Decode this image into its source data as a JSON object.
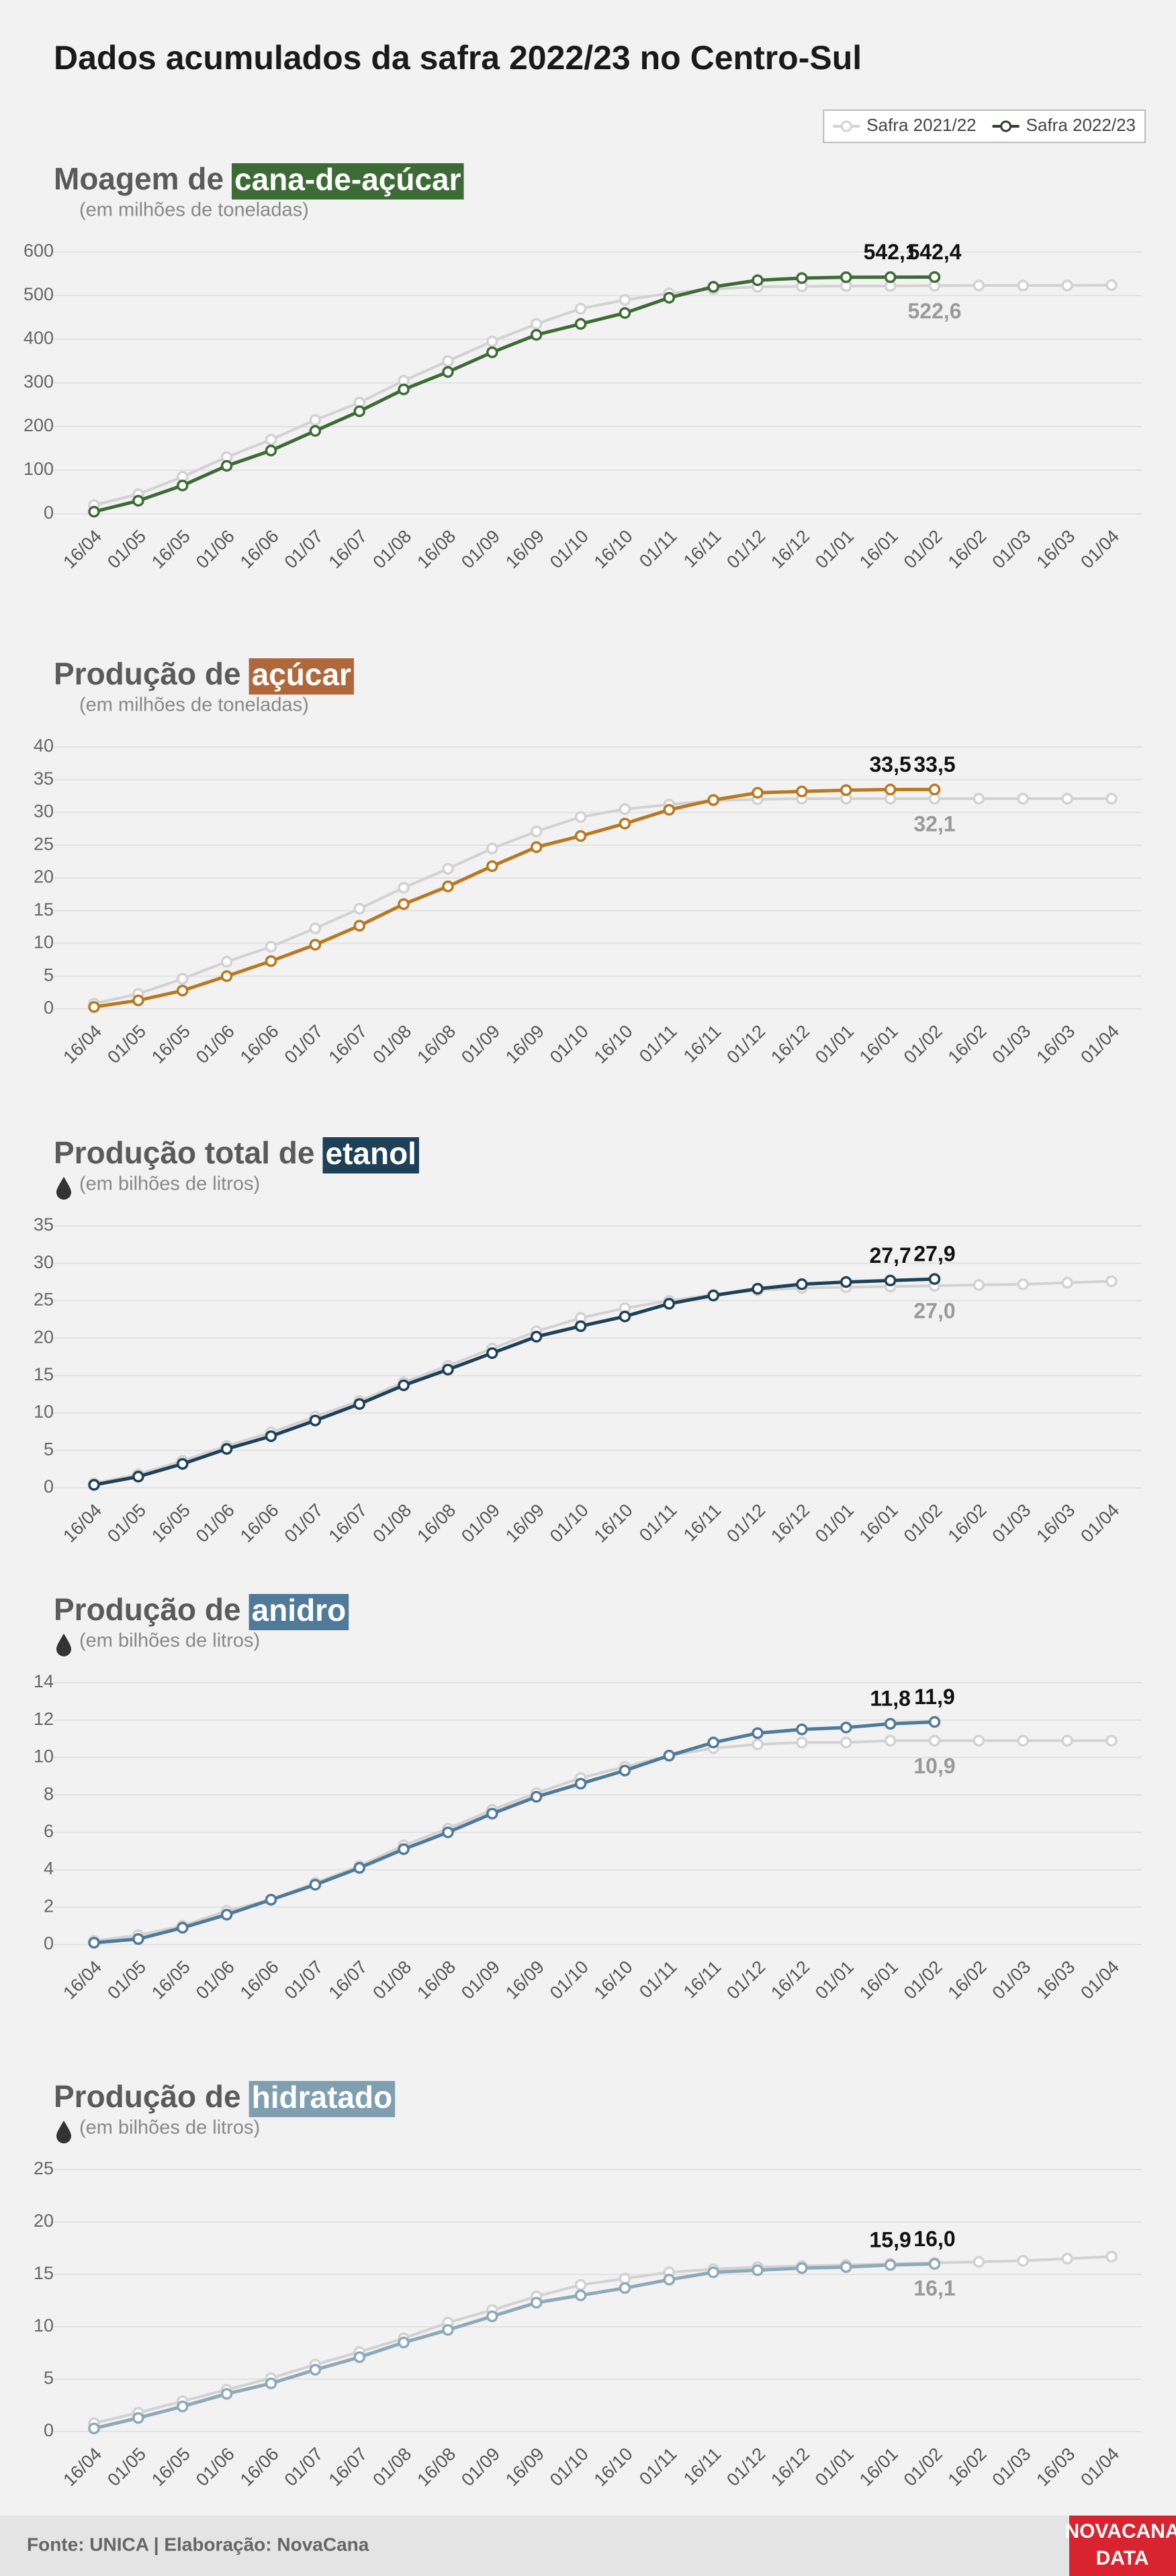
{
  "title": "Dados acumulados da safra 2022/23 no Centro-Sul",
  "legend": {
    "position": "top-right"
  },
  "footer": {
    "source": "Fonte: UNICA | Elaboração: NovaCana",
    "logo": [
      "NOVACANA",
      "DATA"
    ]
  },
  "chart_data": [
    {
      "type": "line",
      "title": "Moagem de",
      "title_highlight": "cana-de-açúcar",
      "highlight_color": "#3d6b35",
      "subtitle": "(em milhões de toneladas)",
      "drop_icon": false,
      "categories": [
        "16/04",
        "01/05",
        "16/05",
        "01/06",
        "16/06",
        "01/07",
        "16/07",
        "01/08",
        "16/08",
        "01/09",
        "16/09",
        "01/10",
        "16/10",
        "01/11",
        "16/11",
        "01/12",
        "16/12",
        "01/01",
        "16/01",
        "01/02",
        "16/02",
        "01/03",
        "16/03",
        "01/04"
      ],
      "series": [
        {
          "name": "Safra 2021/22",
          "color": "#d2d2d2",
          "values": [
            20,
            45,
            85,
            130,
            170,
            215,
            255,
            305,
            350,
            395,
            435,
            470,
            490,
            505,
            515,
            520,
            521,
            522,
            522,
            522.6,
            523,
            523,
            523,
            524
          ],
          "value_labels": [
            null,
            null,
            null,
            null,
            null,
            null,
            null,
            null,
            null,
            null,
            null,
            null,
            null,
            null,
            null,
            null,
            null,
            null,
            null,
            "522,6",
            null,
            null,
            null,
            null
          ]
        },
        {
          "name": "Safra 2022/23",
          "color": "#3d6b35",
          "values": [
            5,
            30,
            65,
            110,
            145,
            190,
            235,
            285,
            325,
            370,
            410,
            435,
            460,
            495,
            520,
            535,
            540,
            542,
            542.1,
            542.4,
            null,
            null,
            null,
            null
          ],
          "value_labels": [
            null,
            null,
            null,
            null,
            null,
            null,
            null,
            null,
            null,
            null,
            null,
            null,
            null,
            null,
            null,
            null,
            null,
            null,
            "542,1",
            "542,4",
            null,
            null,
            null,
            null
          ]
        }
      ],
      "ylim": [
        0,
        600
      ],
      "yticks": [
        0,
        100,
        200,
        300,
        400,
        500,
        600
      ],
      "grid": true
    },
    {
      "type": "line",
      "title": "Produção de",
      "title_highlight": "açúcar",
      "highlight_color": "#b0683a",
      "subtitle": "(em milhões de toneladas)",
      "drop_icon": false,
      "categories": [
        "16/04",
        "01/05",
        "16/05",
        "01/06",
        "16/06",
        "01/07",
        "16/07",
        "01/08",
        "16/08",
        "01/09",
        "16/09",
        "01/10",
        "16/10",
        "01/11",
        "16/11",
        "01/12",
        "16/12",
        "01/01",
        "16/01",
        "01/02",
        "16/02",
        "01/03",
        "16/03",
        "01/04"
      ],
      "series": [
        {
          "color": "#d2d2d2",
          "values": [
            0.8,
            2.3,
            4.6,
            7.2,
            9.5,
            12.3,
            15.3,
            18.5,
            21.4,
            24.5,
            27.1,
            29.3,
            30.5,
            31.2,
            31.8,
            32.0,
            32.1,
            32.1,
            32.1,
            32.1,
            32.1,
            32.1,
            32.1,
            32.1
          ],
          "value_labels": [
            null,
            null,
            null,
            null,
            null,
            null,
            null,
            null,
            null,
            null,
            null,
            null,
            null,
            null,
            null,
            null,
            null,
            null,
            null,
            "32,1",
            null,
            null,
            null,
            null
          ]
        },
        {
          "color": "#b8791f",
          "values": [
            0.3,
            1.3,
            2.8,
            5.0,
            7.3,
            9.8,
            12.7,
            16.0,
            18.7,
            21.8,
            24.7,
            26.4,
            28.3,
            30.4,
            31.9,
            33.0,
            33.2,
            33.4,
            33.5,
            33.5,
            null,
            null,
            null,
            null
          ],
          "value_labels": [
            null,
            null,
            null,
            null,
            null,
            null,
            null,
            null,
            null,
            null,
            null,
            null,
            null,
            null,
            null,
            null,
            null,
            null,
            "33,5",
            "33,5",
            null,
            null,
            null,
            null
          ]
        }
      ],
      "ylim": [
        0,
        40
      ],
      "yticks": [
        0,
        5,
        10,
        15,
        20,
        25,
        30,
        35,
        40
      ],
      "grid": true
    },
    {
      "type": "line",
      "title": "Produção total de",
      "title_highlight": "etanol",
      "highlight_color": "#1e4058",
      "subtitle": "(em bilhões de litros)",
      "drop_icon": true,
      "categories": [
        "16/04",
        "01/05",
        "16/05",
        "01/06",
        "16/06",
        "01/07",
        "16/07",
        "01/08",
        "16/08",
        "01/09",
        "16/09",
        "01/10",
        "16/10",
        "01/11",
        "16/11",
        "01/12",
        "16/12",
        "01/01",
        "16/01",
        "01/02",
        "16/02",
        "01/03",
        "16/03",
        "01/04"
      ],
      "series": [
        {
          "color": "#d2d2d2",
          "values": [
            0.6,
            1.8,
            3.6,
            5.6,
            7.4,
            9.5,
            11.6,
            14.1,
            16.3,
            18.6,
            20.9,
            22.7,
            24.0,
            25.0,
            25.8,
            26.4,
            26.7,
            26.8,
            26.9,
            27.0,
            27.1,
            27.2,
            27.4,
            27.6
          ],
          "value_labels": [
            null,
            null,
            null,
            null,
            null,
            null,
            null,
            null,
            null,
            null,
            null,
            null,
            null,
            null,
            null,
            null,
            null,
            null,
            null,
            "27,0",
            null,
            null,
            null,
            null
          ]
        },
        {
          "color": "#1e4058",
          "values": [
            0.4,
            1.5,
            3.2,
            5.2,
            6.9,
            9.0,
            11.2,
            13.7,
            15.8,
            18.0,
            20.2,
            21.6,
            22.9,
            24.6,
            25.7,
            26.6,
            27.2,
            27.5,
            27.7,
            27.9,
            null,
            null,
            null,
            null
          ],
          "value_labels": [
            null,
            null,
            null,
            null,
            null,
            null,
            null,
            null,
            null,
            null,
            null,
            null,
            null,
            null,
            null,
            null,
            null,
            null,
            "27,7",
            "27,9",
            null,
            null,
            null,
            null
          ]
        }
      ],
      "ylim": [
        0,
        35
      ],
      "yticks": [
        0,
        5,
        10,
        15,
        20,
        25,
        30,
        35
      ],
      "grid": true
    },
    {
      "type": "line",
      "title": "Produção de",
      "title_highlight": "anidro",
      "highlight_color": "#4f7a99",
      "subtitle": "(em bilhões de litros)",
      "drop_icon": true,
      "categories": [
        "16/04",
        "01/05",
        "16/05",
        "01/06",
        "16/06",
        "01/07",
        "16/07",
        "01/08",
        "16/08",
        "01/09",
        "16/09",
        "01/10",
        "16/10",
        "01/11",
        "16/11",
        "01/12",
        "16/12",
        "01/01",
        "16/01",
        "01/02",
        "16/02",
        "01/03",
        "16/03",
        "01/04"
      ],
      "series": [
        {
          "color": "#d2d2d2",
          "values": [
            0.2,
            0.5,
            1.0,
            1.8,
            2.4,
            3.3,
            4.2,
            5.3,
            6.2,
            7.2,
            8.1,
            8.9,
            9.5,
            10.1,
            10.5,
            10.7,
            10.8,
            10.8,
            10.9,
            10.9,
            10.9,
            10.9,
            10.9,
            10.9
          ],
          "value_labels": [
            null,
            null,
            null,
            null,
            null,
            null,
            null,
            null,
            null,
            null,
            null,
            null,
            null,
            null,
            null,
            null,
            null,
            null,
            null,
            "10,9",
            null,
            null,
            null,
            null
          ]
        },
        {
          "color": "#4f7a99",
          "values": [
            0.1,
            0.3,
            0.9,
            1.6,
            2.4,
            3.2,
            4.1,
            5.1,
            6.0,
            7.0,
            7.9,
            8.6,
            9.3,
            10.1,
            10.8,
            11.3,
            11.5,
            11.6,
            11.8,
            11.9,
            null,
            null,
            null,
            null
          ],
          "value_labels": [
            null,
            null,
            null,
            null,
            null,
            null,
            null,
            null,
            null,
            null,
            null,
            null,
            null,
            null,
            null,
            null,
            null,
            null,
            "11,8",
            "11,9",
            null,
            null,
            null,
            null
          ]
        }
      ],
      "ylim": [
        0,
        14
      ],
      "yticks": [
        0,
        2,
        4,
        6,
        8,
        10,
        12,
        14
      ],
      "grid": true
    },
    {
      "type": "line",
      "title": "Produção de",
      "title_highlight": "hidratado",
      "highlight_color": "#7f9fb0",
      "subtitle": "(em bilhões de litros)",
      "drop_icon": true,
      "categories": [
        "16/04",
        "01/05",
        "16/05",
        "01/06",
        "16/06",
        "01/07",
        "16/07",
        "01/08",
        "16/08",
        "01/09",
        "16/09",
        "01/10",
        "16/10",
        "01/11",
        "16/11",
        "01/12",
        "16/12",
        "01/01",
        "16/01",
        "01/02",
        "16/02",
        "01/03",
        "16/03",
        "01/04"
      ],
      "series": [
        {
          "color": "#d2d2d2",
          "values": [
            0.8,
            1.8,
            2.9,
            4.0,
            5.1,
            6.4,
            7.6,
            8.9,
            10.4,
            11.6,
            12.9,
            14.0,
            14.6,
            15.2,
            15.5,
            15.7,
            15.8,
            15.9,
            16.0,
            16.1,
            16.2,
            16.3,
            16.5,
            16.7
          ],
          "value_labels": [
            null,
            null,
            null,
            null,
            null,
            null,
            null,
            null,
            null,
            null,
            null,
            null,
            null,
            null,
            null,
            null,
            null,
            null,
            null,
            "16,1",
            null,
            null,
            null,
            null
          ]
        },
        {
          "color": "#8eaaba",
          "values": [
            0.3,
            1.3,
            2.4,
            3.6,
            4.6,
            5.9,
            7.1,
            8.5,
            9.7,
            11.0,
            12.3,
            13.0,
            13.7,
            14.5,
            15.2,
            15.4,
            15.6,
            15.7,
            15.9,
            16.0,
            null,
            null,
            null,
            null
          ],
          "value_labels": [
            null,
            null,
            null,
            null,
            null,
            null,
            null,
            null,
            null,
            null,
            null,
            null,
            null,
            null,
            null,
            null,
            null,
            null,
            "15,9",
            "16,0",
            null,
            null,
            null,
            null
          ]
        }
      ],
      "ylim": [
        0,
        25
      ],
      "yticks": [
        0,
        5,
        10,
        15,
        20,
        25
      ],
      "grid": true
    }
  ]
}
